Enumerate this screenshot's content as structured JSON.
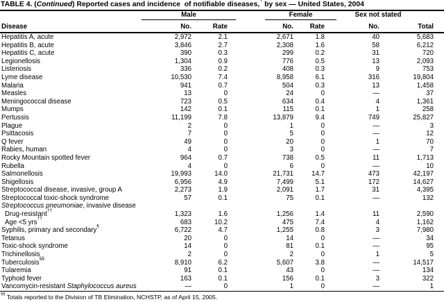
{
  "title_text": "TABLE 4. (Continued) Reported cases and incidence* of notifiable diseases,† by sex — United States, 2004",
  "title_parts": [
    {
      "t": "TABLE 4. ("
    },
    {
      "t": "Continued",
      "style": "italic"
    },
    {
      "t": ") Reported cases and incidence"
    },
    {
      "t": "*",
      "style": "sup"
    },
    {
      "t": " of notifiable diseases,"
    },
    {
      "t": "†",
      "style": "sup"
    },
    {
      "t": " by sex — United States, 2004"
    }
  ],
  "table": {
    "groups": {
      "male": "Male",
      "female": "Female",
      "sex_not_stated": "Sex not stated"
    },
    "columns": {
      "disease": "Disease",
      "no": "No.",
      "rate": "Rate",
      "total": "Total"
    },
    "value_column_order": [
      "male_no",
      "male_rate",
      "female_no",
      "female_rate",
      "sex_not_stated_no",
      "total"
    ],
    "rows": [
      {
        "name_parts": [
          {
            "t": "Hepatitis A, acute"
          }
        ],
        "values": [
          "2,972",
          "2.1",
          "2,671",
          "1.8",
          "40",
          "5,683"
        ]
      },
      {
        "name_parts": [
          {
            "t": "Hepatitis B, acute"
          }
        ],
        "values": [
          "3,846",
          "2.7",
          "2,308",
          "1.6",
          "58",
          "6,212"
        ]
      },
      {
        "name_parts": [
          {
            "t": "Hepatitis C, acute"
          }
        ],
        "values": [
          "390",
          "0.3",
          "299",
          "0.2",
          "31",
          "720"
        ]
      },
      {
        "name_parts": [
          {
            "t": "Legionellosis"
          }
        ],
        "values": [
          "1,304",
          "0.9",
          "776",
          "0.5",
          "13",
          "2,093"
        ]
      },
      {
        "name_parts": [
          {
            "t": "Listeriosis"
          }
        ],
        "values": [
          "336",
          "0.2",
          "408",
          "0.3",
          "9",
          "753"
        ]
      },
      {
        "name_parts": [
          {
            "t": "Lyme disease"
          }
        ],
        "values": [
          "10,530",
          "7.4",
          "8,958",
          "6.1",
          "316",
          "19,804"
        ]
      },
      {
        "name_parts": [
          {
            "t": "Malaria"
          }
        ],
        "values": [
          "941",
          "0.7",
          "504",
          "0.3",
          "13",
          "1,458"
        ]
      },
      {
        "name_parts": [
          {
            "t": "Measles"
          }
        ],
        "values": [
          "13",
          "0",
          "24",
          "0",
          "—",
          "37"
        ]
      },
      {
        "name_parts": [
          {
            "t": "Meningococcal disease"
          }
        ],
        "values": [
          "723",
          "0.5",
          "634",
          "0.4",
          "4",
          "1,361"
        ]
      },
      {
        "name_parts": [
          {
            "t": "Mumps"
          }
        ],
        "values": [
          "142",
          "0.1",
          "115",
          "0.1",
          "1",
          "258"
        ]
      },
      {
        "name_parts": [
          {
            "t": "Pertussis"
          }
        ],
        "values": [
          "11,199",
          "7.8",
          "13,879",
          "9.4",
          "749",
          "25,827"
        ]
      },
      {
        "name_parts": [
          {
            "t": "Plague"
          }
        ],
        "values": [
          "2",
          "0",
          "1",
          "0",
          "—",
          "3"
        ]
      },
      {
        "name_parts": [
          {
            "t": "Psittacosis"
          }
        ],
        "values": [
          "7",
          "0",
          "5",
          "0",
          "—",
          "12"
        ]
      },
      {
        "name_parts": [
          {
            "t": "Q fever"
          }
        ],
        "values": [
          "49",
          "0",
          "20",
          "0",
          "1",
          "70"
        ]
      },
      {
        "name_parts": [
          {
            "t": "Rabies, human"
          }
        ],
        "values": [
          "4",
          "0",
          "3",
          "0",
          "—",
          "7"
        ]
      },
      {
        "name_parts": [
          {
            "t": "Rocky Mountain spotted fever"
          }
        ],
        "values": [
          "964",
          "0.7",
          "738",
          "0.5",
          "11",
          "1,713"
        ]
      },
      {
        "name_parts": [
          {
            "t": "Rubella"
          }
        ],
        "values": [
          "4",
          "0",
          "6",
          "0",
          "—",
          "10"
        ]
      },
      {
        "name_parts": [
          {
            "t": "Salmonellosis"
          }
        ],
        "values": [
          "19,993",
          "14.0",
          "21,731",
          "14.7",
          "473",
          "42,197"
        ]
      },
      {
        "name_parts": [
          {
            "t": "Shigellosis"
          }
        ],
        "values": [
          "6,956",
          "4.9",
          "7,499",
          "5.1",
          "172",
          "14,627"
        ]
      },
      {
        "name_parts": [
          {
            "t": "Streptococcal disease, invasive, group A"
          }
        ],
        "values": [
          "2,273",
          "1.9",
          "2,091",
          "1.7",
          "31",
          "4,395"
        ]
      },
      {
        "name_parts": [
          {
            "t": "Streptococcal toxic-shock syndrome"
          }
        ],
        "values": [
          "57",
          "0.1",
          "75",
          "0.1",
          "—",
          "132"
        ]
      },
      {
        "section": true,
        "name_parts": [
          {
            "t": "Streptococcus pneumoniae",
            "style": "italic"
          },
          {
            "t": ", invasive disease"
          }
        ]
      },
      {
        "indent": true,
        "name_parts": [
          {
            "t": "Drug-resistant"
          },
          {
            "t": "††",
            "style": "sup"
          }
        ],
        "values": [
          "1,323",
          "1.6",
          "1,256",
          "1.4",
          "11",
          "2,590"
        ]
      },
      {
        "indent": true,
        "name_parts": [
          {
            "t": "Age <5 yrs"
          },
          {
            "t": "††",
            "style": "sup"
          }
        ],
        "values": [
          "683",
          "10.2",
          "475",
          "7.4",
          "4",
          "1,162"
        ]
      },
      {
        "name_parts": [
          {
            "t": "Syphilis, primary and secondary"
          },
          {
            "t": "¶",
            "style": "sup"
          }
        ],
        "values": [
          "6,722",
          "4.7",
          "1,255",
          "0.8",
          "3",
          "7,980"
        ]
      },
      {
        "name_parts": [
          {
            "t": "Tetanus"
          }
        ],
        "values": [
          "20",
          "0",
          "14",
          "0",
          "—",
          "34"
        ]
      },
      {
        "name_parts": [
          {
            "t": "Toxic-shock syndrome"
          }
        ],
        "values": [
          "14",
          "0",
          "81",
          "0.1",
          "—",
          "95"
        ]
      },
      {
        "name_parts": [
          {
            "t": "Trichinellosis"
          }
        ],
        "values": [
          "2",
          "0",
          "2",
          "0",
          "1",
          "5"
        ]
      },
      {
        "name_parts": [
          {
            "t": "Tuberculosis"
          },
          {
            "t": "§§",
            "style": "sup"
          }
        ],
        "values": [
          "8,910",
          "6.2",
          "5,607",
          "3.8",
          "—",
          "14,517"
        ]
      },
      {
        "name_parts": [
          {
            "t": "Tularemia"
          }
        ],
        "values": [
          "91",
          "0.1",
          "43",
          "0",
          "—",
          "134"
        ]
      },
      {
        "name_parts": [
          {
            "t": "Typhoid fever"
          }
        ],
        "values": [
          "163",
          "0.1",
          "156",
          "0.1",
          "3",
          "322"
        ]
      },
      {
        "name_parts": [
          {
            "t": "Vancomycin-resistant "
          },
          {
            "t": "Staphylococcus aureus",
            "style": "italic"
          }
        ],
        "values": [
          "—",
          "0",
          "1",
          "0",
          "—",
          "1"
        ]
      }
    ]
  },
  "footnote_text": "§§ Totals reported to the Division of TB Elimination, NCHSTP, as of April 15, 2005.",
  "footnote_parts": [
    {
      "t": "§§",
      "style": "sup"
    },
    {
      "t": " Totals reported to the Division of TB Elimination, NCHSTP, as of April 15, 2005."
    }
  ],
  "colors": {
    "text": "#000000",
    "background": "#ffffff",
    "rule": "#000000"
  }
}
